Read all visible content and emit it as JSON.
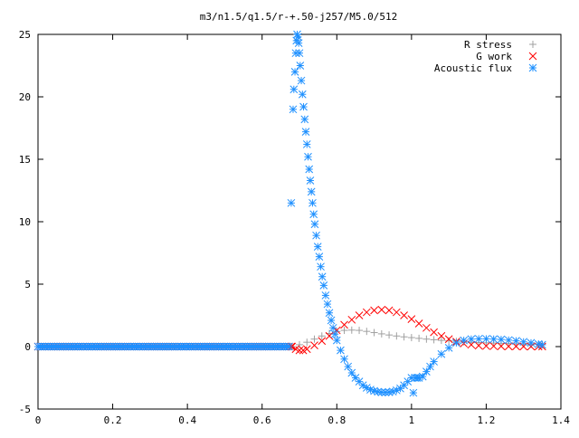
{
  "chart_data": {
    "type": "scatter",
    "title": "m3/n1.5/q1.5/r-+.50-j257/M5.0/512",
    "xlabel": "",
    "ylabel": "",
    "xlim": [
      0,
      1.4
    ],
    "ylim": [
      -5,
      25
    ],
    "x_ticks": [
      0,
      0.2,
      0.4,
      0.6,
      0.8,
      1,
      1.2,
      1.4
    ],
    "x_tick_labels": [
      "0",
      "0.2",
      "0.4",
      "0.6",
      "0.8",
      "1",
      "1.2",
      "1.4"
    ],
    "y_ticks": [
      -5,
      0,
      5,
      10,
      15,
      20,
      25
    ],
    "y_tick_labels": [
      "-5",
      "0",
      "5",
      "10",
      "15",
      "20",
      "25"
    ],
    "grid": false,
    "legend_position": "top-right",
    "series": [
      {
        "name": "R stress",
        "marker": "plus",
        "color": "#a0a0a0",
        "x": [
          0.68,
          0.7,
          0.72,
          0.74,
          0.76,
          0.78,
          0.8,
          0.82,
          0.84,
          0.86,
          0.88,
          0.9,
          0.92,
          0.94,
          0.96,
          0.98,
          1.0,
          1.02,
          1.04,
          1.06,
          1.08,
          1.1,
          1.12,
          1.14,
          1.16,
          1.18,
          1.2,
          1.22,
          1.24,
          1.26,
          1.28,
          1.3,
          1.32,
          1.34,
          1.35
        ],
        "y": [
          0.0,
          0.15,
          0.35,
          0.6,
          0.85,
          1.05,
          1.2,
          1.3,
          1.32,
          1.3,
          1.22,
          1.12,
          1.02,
          0.93,
          0.85,
          0.78,
          0.72,
          0.66,
          0.6,
          0.55,
          0.5,
          0.46,
          0.42,
          0.38,
          0.35,
          0.32,
          0.3,
          0.28,
          0.26,
          0.24,
          0.22,
          0.2,
          0.18,
          0.17,
          0.16
        ]
      },
      {
        "name": "G work",
        "marker": "cross",
        "color": "#ff0000",
        "x": [
          0.68,
          0.69,
          0.7,
          0.71,
          0.72,
          0.74,
          0.76,
          0.78,
          0.8,
          0.82,
          0.84,
          0.86,
          0.88,
          0.9,
          0.92,
          0.94,
          0.96,
          0.98,
          1.0,
          1.02,
          1.04,
          1.06,
          1.08,
          1.1,
          1.12,
          1.14,
          1.16,
          1.18,
          1.2,
          1.22,
          1.24,
          1.26,
          1.28,
          1.3,
          1.32,
          1.34,
          1.35
        ],
        "y": [
          0.0,
          -0.2,
          -0.3,
          -0.3,
          -0.2,
          0.1,
          0.45,
          0.85,
          1.3,
          1.75,
          2.15,
          2.5,
          2.75,
          2.9,
          2.95,
          2.9,
          2.75,
          2.5,
          2.2,
          1.85,
          1.5,
          1.15,
          0.85,
          0.6,
          0.4,
          0.25,
          0.15,
          0.08,
          0.05,
          0.04,
          0.03,
          0.02,
          0.02,
          0.01,
          0.01,
          0.01,
          0.01
        ]
      },
      {
        "name": "Acoustic flux",
        "marker": "asterisk",
        "color": "#1e90ff",
        "x": [
          0.678,
          0.683,
          0.685,
          0.688,
          0.69,
          0.692,
          0.694,
          0.696,
          0.698,
          0.7,
          0.702,
          0.705,
          0.708,
          0.711,
          0.714,
          0.717,
          0.72,
          0.723,
          0.726,
          0.729,
          0.732,
          0.735,
          0.738,
          0.741,
          0.745,
          0.749,
          0.753,
          0.757,
          0.761,
          0.765,
          0.77,
          0.775,
          0.78,
          0.785,
          0.79,
          0.795,
          0.8,
          0.81,
          0.82,
          0.83,
          0.84,
          0.85,
          0.86,
          0.87,
          0.88,
          0.89,
          0.9,
          0.91,
          0.92,
          0.93,
          0.94,
          0.95,
          0.96,
          0.97,
          0.98,
          0.99,
          1.0,
          1.005,
          1.01,
          1.015,
          1.02,
          1.03,
          1.04,
          1.05,
          1.06,
          1.08,
          1.1,
          1.12,
          1.14,
          1.16,
          1.18,
          1.2,
          1.22,
          1.24,
          1.26,
          1.28,
          1.3,
          1.32,
          1.34,
          1.35
        ],
        "y": [
          11.5,
          19.0,
          20.6,
          22.0,
          23.5,
          24.5,
          25.0,
          24.8,
          24.3,
          23.5,
          22.5,
          21.3,
          20.2,
          19.2,
          18.2,
          17.2,
          16.2,
          15.2,
          14.2,
          13.3,
          12.4,
          11.5,
          10.6,
          9.8,
          8.9,
          8.0,
          7.2,
          6.4,
          5.6,
          4.9,
          4.1,
          3.4,
          2.7,
          2.1,
          1.5,
          1.0,
          0.5,
          -0.3,
          -1.0,
          -1.6,
          -2.1,
          -2.5,
          -2.8,
          -3.1,
          -3.3,
          -3.45,
          -3.55,
          -3.62,
          -3.66,
          -3.67,
          -3.65,
          -3.6,
          -3.5,
          -3.35,
          -3.1,
          -2.8,
          -2.5,
          -3.7,
          -2.5,
          -2.5,
          -2.5,
          -2.4,
          -2.0,
          -1.6,
          -1.2,
          -0.6,
          -0.1,
          0.3,
          0.5,
          0.6,
          0.62,
          0.62,
          0.6,
          0.57,
          0.52,
          0.46,
          0.38,
          0.3,
          0.2,
          0.15
        ]
      }
    ]
  }
}
